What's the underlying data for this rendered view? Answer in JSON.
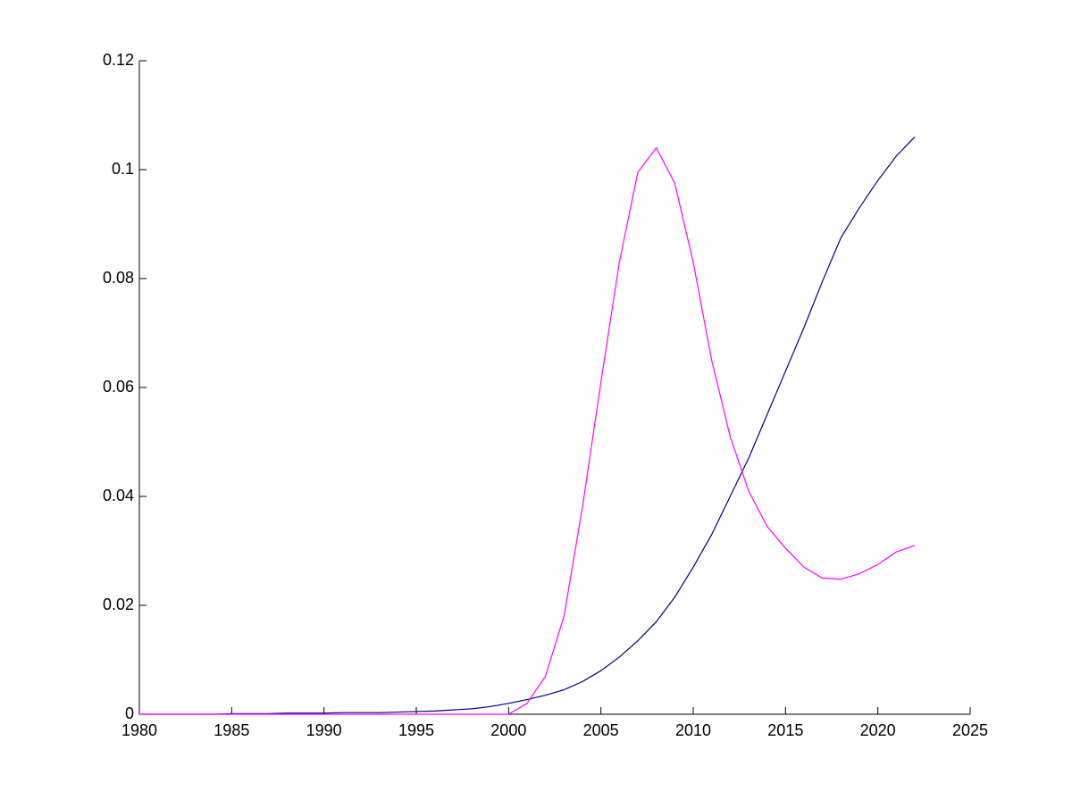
{
  "chart_data": {
    "type": "line",
    "x": [
      1980,
      1981,
      1982,
      1983,
      1984,
      1985,
      1986,
      1987,
      1988,
      1989,
      1990,
      1991,
      1992,
      1993,
      1994,
      1995,
      1996,
      1997,
      1998,
      1999,
      2000,
      2001,
      2002,
      2003,
      2004,
      2005,
      2006,
      2007,
      2008,
      2009,
      2010,
      2011,
      2012,
      2013,
      2014,
      2015,
      2016,
      2017,
      2018,
      2019,
      2020,
      2021,
      2022
    ],
    "series": [
      {
        "color": "#000080",
        "values": [
          0,
          0,
          0,
          0,
          0,
          0.0001,
          0.0001,
          0.0001,
          0.0002,
          0.0002,
          0.0002,
          0.0003,
          0.0003,
          0.0003,
          0.0004,
          0.0005,
          0.0006,
          0.0008,
          0.001,
          0.0014,
          0.002,
          0.0027,
          0.0035,
          0.0045,
          0.006,
          0.008,
          0.0105,
          0.0135,
          0.017,
          0.0215,
          0.027,
          0.033,
          0.04,
          0.047,
          0.055,
          0.063,
          0.071,
          0.0795,
          0.0875,
          0.093,
          0.098,
          0.1025,
          0.106
        ]
      },
      {
        "color": "#ff00ff",
        "values": [
          0,
          0,
          0,
          0,
          0,
          0,
          0,
          0,
          0,
          0,
          0,
          0,
          0,
          0,
          0,
          0,
          0,
          0,
          0,
          0,
          0,
          0.002,
          0.007,
          0.018,
          0.038,
          0.061,
          0.083,
          0.0995,
          0.104,
          0.0975,
          0.083,
          0.065,
          0.051,
          0.041,
          0.0345,
          0.0305,
          0.027,
          0.025,
          0.0248,
          0.0258,
          0.0275,
          0.0298,
          0.031
        ]
      }
    ],
    "xlim": [
      1980,
      2025
    ],
    "xticks": [
      1980,
      1985,
      1990,
      1995,
      2000,
      2005,
      2010,
      2015,
      2020,
      2025
    ],
    "ylim": [
      0,
      0.12
    ],
    "yticks": [
      0,
      0.02,
      0.04,
      0.06,
      0.08,
      0.1,
      0.12
    ]
  }
}
